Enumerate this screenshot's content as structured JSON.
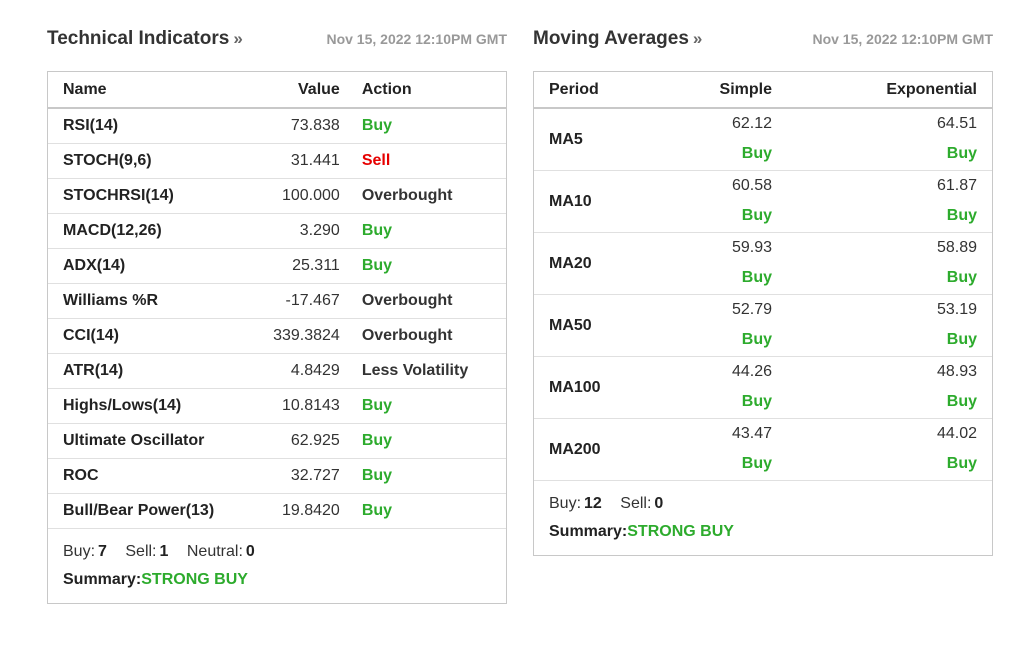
{
  "technical": {
    "title": "Technical Indicators",
    "more_glyph": "»",
    "date": "Nov 15, 2022 12:10PM GMT",
    "headers": {
      "name": "Name",
      "value": "Value",
      "action": "Action"
    },
    "rows": [
      {
        "name": "RSI(14)",
        "value": "73.838",
        "action": "Buy",
        "tone": "buy"
      },
      {
        "name": "STOCH(9,6)",
        "value": "31.441",
        "action": "Sell",
        "tone": "sell"
      },
      {
        "name": "STOCHRSI(14)",
        "value": "100.000",
        "action": "Overbought",
        "tone": "neutral"
      },
      {
        "name": "MACD(12,26)",
        "value": "3.290",
        "action": "Buy",
        "tone": "buy"
      },
      {
        "name": "ADX(14)",
        "value": "25.311",
        "action": "Buy",
        "tone": "buy"
      },
      {
        "name": "Williams %R",
        "value": "-17.467",
        "action": "Overbought",
        "tone": "neutral"
      },
      {
        "name": "CCI(14)",
        "value": "339.3824",
        "action": "Overbought",
        "tone": "neutral"
      },
      {
        "name": "ATR(14)",
        "value": "4.8429",
        "action": "Less Volatility",
        "tone": "neutral"
      },
      {
        "name": "Highs/Lows(14)",
        "value": "10.8143",
        "action": "Buy",
        "tone": "buy"
      },
      {
        "name": "Ultimate Oscillator",
        "value": "62.925",
        "action": "Buy",
        "tone": "buy"
      },
      {
        "name": "ROC",
        "value": "32.727",
        "action": "Buy",
        "tone": "buy"
      },
      {
        "name": "Bull/Bear Power(13)",
        "value": "19.8420",
        "action": "Buy",
        "tone": "buy"
      }
    ],
    "summary": {
      "buy_label": "Buy:",
      "buy_count": "7",
      "sell_label": "Sell:",
      "sell_count": "1",
      "neutral_label": "Neutral:",
      "neutral_count": "0",
      "summary_label": "Summary:",
      "summary_value": "STRONG BUY"
    }
  },
  "moving_averages": {
    "title": "Moving Averages",
    "more_glyph": "»",
    "date": "Nov 15, 2022 12:10PM GMT",
    "headers": {
      "period": "Period",
      "simple": "Simple",
      "exponential": "Exponential"
    },
    "rows": [
      {
        "period": "MA5",
        "simple": "62.12",
        "simple_action": "Buy",
        "exponential": "64.51",
        "exponential_action": "Buy"
      },
      {
        "period": "MA10",
        "simple": "60.58",
        "simple_action": "Buy",
        "exponential": "61.87",
        "exponential_action": "Buy"
      },
      {
        "period": "MA20",
        "simple": "59.93",
        "simple_action": "Buy",
        "exponential": "58.89",
        "exponential_action": "Buy"
      },
      {
        "period": "MA50",
        "simple": "52.79",
        "simple_action": "Buy",
        "exponential": "53.19",
        "exponential_action": "Buy"
      },
      {
        "period": "MA100",
        "simple": "44.26",
        "simple_action": "Buy",
        "exponential": "48.93",
        "exponential_action": "Buy"
      },
      {
        "period": "MA200",
        "simple": "43.47",
        "simple_action": "Buy",
        "exponential": "44.02",
        "exponential_action": "Buy"
      }
    ],
    "summary": {
      "buy_label": "Buy:",
      "buy_count": "12",
      "sell_label": "Sell:",
      "sell_count": "0",
      "summary_label": "Summary:",
      "summary_value": "STRONG BUY"
    }
  },
  "colors": {
    "buy": "#2dab2d",
    "sell": "#e60000",
    "neutral": "#333333",
    "date_gray": "#999999",
    "border": "#c8c8c8"
  }
}
